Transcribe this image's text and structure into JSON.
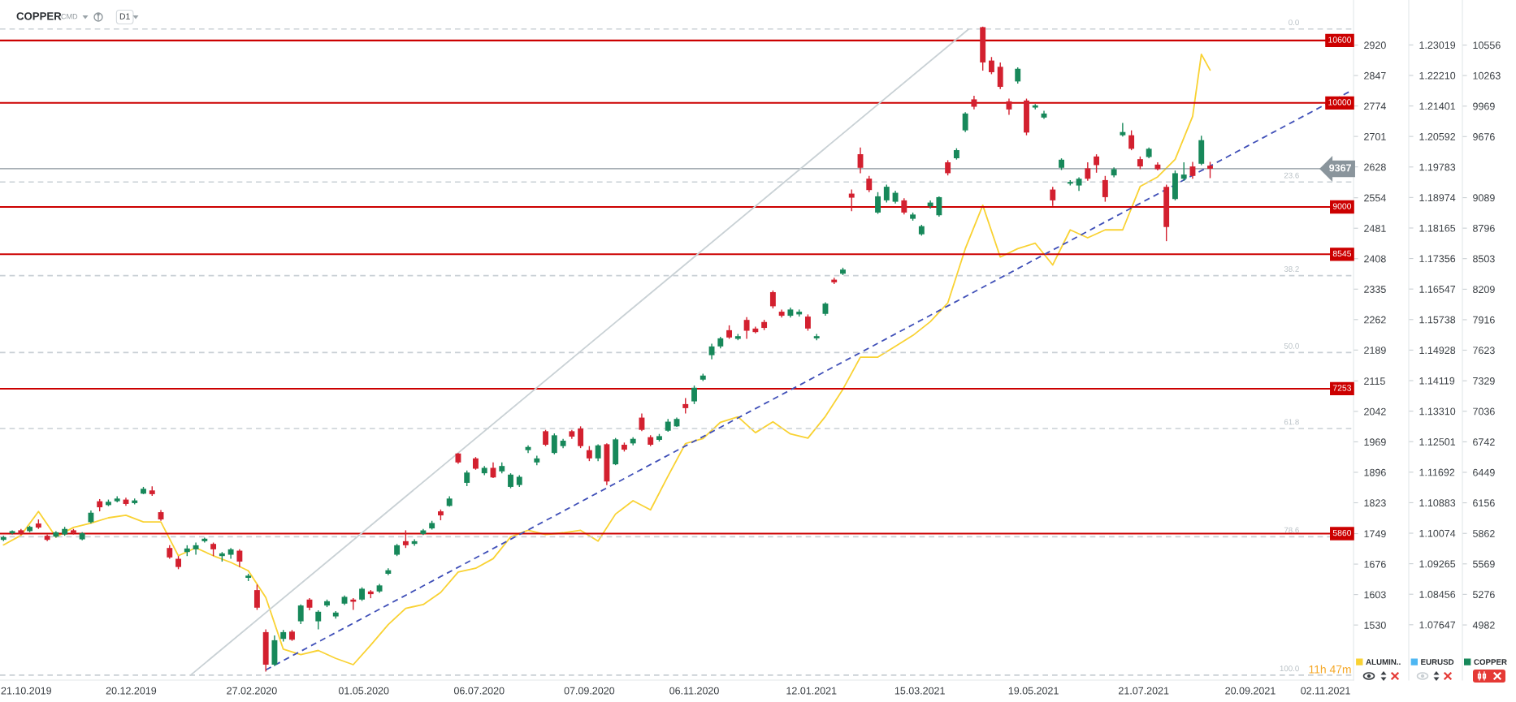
{
  "chart_data": {
    "type": "candlestick",
    "title": "COPPER",
    "annotations": [
      "CMD",
      "D1",
      "11h 47m",
      {
        "text": "0.0",
        "x": "2021-10-18",
        "y": 10710
      },
      {
        "text": "23.6",
        "x": "2021-10-18",
        "y": 9240
      },
      {
        "text": "38.2",
        "x": "2021-10-18",
        "y": 8340
      },
      {
        "text": "50.0",
        "x": "2021-10-18",
        "y": 7600
      },
      {
        "text": "61.8",
        "x": "2021-10-18",
        "y": 6870
      },
      {
        "text": "78.6",
        "x": "2021-10-18",
        "y": 5830
      },
      {
        "text": "100.0",
        "x": "2021-10-18",
        "y": 4500
      }
    ],
    "xlim": [
      "2019-10-06",
      "2021-11-18"
    ],
    "xticks": [
      {
        "value": "2019-10-21",
        "label": "21.10.2019"
      },
      {
        "value": "2019-12-20",
        "label": "20.12.2019"
      },
      {
        "value": "2020-02-27",
        "label": "27.02.2020"
      },
      {
        "value": "2020-05-01",
        "label": "01.05.2020"
      },
      {
        "value": "2020-07-06",
        "label": "06.07.2020"
      },
      {
        "value": "2020-09-07",
        "label": "07.09.2020"
      },
      {
        "value": "2020-11-06",
        "label": "06.11.2020"
      },
      {
        "value": "2021-01-12",
        "label": "12.01.2021"
      },
      {
        "value": "2021-03-15",
        "label": "15.03.2021"
      },
      {
        "value": "2021-05-19",
        "label": "19.05.2021"
      },
      {
        "value": "2021-07-21",
        "label": "21.07.2021"
      },
      {
        "value": "2021-09-20",
        "label": "20.09.2021"
      },
      {
        "value": "2021-11-02",
        "label": "02.11.2021"
      }
    ],
    "ylim": [
      4452,
      10989
    ],
    "yticks": [
      10556,
      10263,
      9969,
      9676,
      9089,
      8796,
      8503,
      8209,
      7916,
      7623,
      7329,
      7036,
      6742,
      6449,
      6156,
      5862,
      5569,
      5276,
      4982
    ],
    "y2lim": [
      1398,
      3028
    ],
    "y2ticks": [
      2920,
      2847,
      2774,
      2701,
      2628,
      2554,
      2481,
      2408,
      2335,
      2262,
      2189,
      2115,
      2042,
      1969,
      1896,
      1823,
      1749,
      1676,
      1603,
      1530
    ],
    "y3lim": [
      1.0618,
      1.2421
    ],
    "y3ticks": [
      1.23019,
      {
        "value": 1.2221,
        "label": "1.22210"
      },
      1.21401,
      1.20592,
      1.19783,
      1.18974,
      1.18165,
      1.17356,
      1.16547,
      1.15738,
      1.14928,
      1.14119,
      {
        "value": 1.1331,
        "label": "1.13310"
      },
      1.12501,
      1.11692,
      1.10883,
      1.10074,
      1.09265,
      1.08456,
      1.07647
    ],
    "legend": "bottom right",
    "series": [
      {
        "name": "ALUMIN..",
        "type": "line",
        "axis": "y2",
        "color": "#f9d233",
        "x": [
          "2019-10-08",
          "2019-10-18",
          "2019-10-28",
          "2019-11-07",
          "2019-11-17",
          "2019-11-27",
          "2019-12-07",
          "2019-12-17",
          "2019-12-27",
          "2020-01-06",
          "2020-01-16",
          "2020-01-26",
          "2020-02-05",
          "2020-02-15",
          "2020-02-25",
          "2020-03-06",
          "2020-03-16",
          "2020-03-26",
          "2020-04-05",
          "2020-04-15",
          "2020-04-25",
          "2020-05-05",
          "2020-05-15",
          "2020-05-25",
          "2020-06-04",
          "2020-06-14",
          "2020-06-24",
          "2020-07-04",
          "2020-07-14",
          "2020-07-24",
          "2020-08-03",
          "2020-08-13",
          "2020-08-23",
          "2020-09-02",
          "2020-09-12",
          "2020-09-22",
          "2020-10-02",
          "2020-10-12",
          "2020-10-22",
          "2020-11-01",
          "2020-11-11",
          "2020-11-21",
          "2020-12-01",
          "2020-12-11",
          "2020-12-21",
          "2020-12-31",
          "2021-01-10",
          "2021-01-20",
          "2021-01-30",
          "2021-02-09",
          "2021-02-19",
          "2021-03-01",
          "2021-03-11",
          "2021-03-21",
          "2021-03-31",
          "2021-04-10",
          "2021-04-20",
          "2021-04-30",
          "2021-05-10",
          "2021-05-20",
          "2021-05-30",
          "2021-06-09",
          "2021-06-19",
          "2021-06-29",
          "2021-07-09",
          "2021-07-19",
          "2021-07-29",
          "2021-08-08",
          "2021-08-18",
          "2021-08-23",
          "2021-08-28"
        ],
        "values": [
          1722,
          1745,
          1802,
          1741,
          1764,
          1774,
          1787,
          1793,
          1777,
          1777,
          1696,
          1715,
          1696,
          1680,
          1660,
          1596,
          1472,
          1459,
          1469,
          1450,
          1435,
          1482,
          1531,
          1570,
          1579,
          1608,
          1657,
          1666,
          1689,
          1741,
          1757,
          1747,
          1751,
          1757,
          1731,
          1796,
          1828,
          1806,
          1887,
          1965,
          1977,
          2016,
          2029,
          1991,
          2017,
          1988,
          1978,
          2030,
          2095,
          2172,
          2172,
          2198,
          2224,
          2257,
          2302,
          2432,
          2536,
          2412,
          2432,
          2445,
          2393,
          2477,
          2458,
          2477,
          2477,
          2581,
          2604,
          2646,
          2749,
          2898,
          2860
        ]
      },
      {
        "name": "EURUSD",
        "type": "line",
        "axis": "y3",
        "color": "#4db6f2"
      },
      {
        "name": "COPPER",
        "axis": "y",
        "color": "#17885a",
        "x": [
          "2019-10-08",
          "2019-10-13",
          "2019-10-18",
          "2019-10-23",
          "2019-10-28",
          "2019-11-02",
          "2019-11-07",
          "2019-11-12",
          "2019-11-17",
          "2019-11-22",
          "2019-11-27",
          "2019-12-02",
          "2019-12-07",
          "2019-12-12",
          "2019-12-17",
          "2019-12-22",
          "2019-12-27",
          "2020-01-01",
          "2020-01-06",
          "2020-01-11",
          "2020-01-16",
          "2020-01-21",
          "2020-01-26",
          "2020-01-31",
          "2020-02-05",
          "2020-02-10",
          "2020-02-15",
          "2020-02-20",
          "2020-02-25",
          "2020-03-01",
          "2020-03-06",
          "2020-03-11",
          "2020-03-16",
          "2020-03-21",
          "2020-03-26",
          "2020-03-31",
          "2020-04-05",
          "2020-04-10",
          "2020-04-15",
          "2020-04-20",
          "2020-04-25",
          "2020-04-30",
          "2020-05-05",
          "2020-05-10",
          "2020-05-15",
          "2020-05-20",
          "2020-05-25",
          "2020-05-30",
          "2020-06-04",
          "2020-06-09",
          "2020-06-14",
          "2020-06-19",
          "2020-06-24",
          "2020-06-29",
          "2020-07-04",
          "2020-07-09",
          "2020-07-14",
          "2020-07-19",
          "2020-07-24",
          "2020-07-29",
          "2020-08-03",
          "2020-08-08",
          "2020-08-13",
          "2020-08-18",
          "2020-08-23",
          "2020-08-28",
          "2020-09-02",
          "2020-09-07",
          "2020-09-12",
          "2020-09-17",
          "2020-09-22",
          "2020-09-27",
          "2020-10-02",
          "2020-10-07",
          "2020-10-12",
          "2020-10-17",
          "2020-10-22",
          "2020-10-27",
          "2020-11-01",
          "2020-11-06",
          "2020-11-11",
          "2020-11-16",
          "2020-11-21",
          "2020-11-26",
          "2020-12-01",
          "2020-12-06",
          "2020-12-11",
          "2020-12-16",
          "2020-12-21",
          "2020-12-26",
          "2020-12-31",
          "2021-01-05",
          "2021-01-10",
          "2021-01-15",
          "2021-01-20",
          "2021-01-25",
          "2021-01-30",
          "2021-02-04",
          "2021-02-09",
          "2021-02-14",
          "2021-02-19",
          "2021-02-24",
          "2021-03-01",
          "2021-03-06",
          "2021-03-11",
          "2021-03-16",
          "2021-03-21",
          "2021-03-26",
          "2021-03-31",
          "2021-04-05",
          "2021-04-10",
          "2021-04-15",
          "2021-04-20",
          "2021-04-25",
          "2021-04-30",
          "2021-05-05",
          "2021-05-10",
          "2021-05-15",
          "2021-05-20",
          "2021-05-25",
          "2021-05-30",
          "2021-06-04",
          "2021-06-09",
          "2021-06-14",
          "2021-06-19",
          "2021-06-24",
          "2021-06-29",
          "2021-07-04",
          "2021-07-09",
          "2021-07-14",
          "2021-07-19",
          "2021-07-24",
          "2021-07-29",
          "2021-08-03",
          "2021-08-08",
          "2021-08-13",
          "2021-08-18",
          "2021-08-23",
          "2021-08-28"
        ],
        "ohlc": [
          [
            5800,
            5839,
            5787,
            5826
          ],
          [
            5863,
            5892,
            5852,
            5884
          ],
          [
            5892,
            5905,
            5847,
            5858
          ],
          [
            5884,
            5936,
            5873,
            5925
          ],
          [
            5957,
            5996,
            5905,
            5918
          ],
          [
            5839,
            5852,
            5787,
            5800
          ],
          [
            5831,
            5884,
            5821,
            5873
          ],
          [
            5852,
            5925,
            5839,
            5905
          ],
          [
            5892,
            5905,
            5852,
            5865
          ],
          [
            5805,
            5873,
            5795,
            5863
          ],
          [
            5970,
            6082,
            5957,
            6061
          ],
          [
            6171,
            6192,
            6074,
            6113
          ],
          [
            6134,
            6187,
            6124,
            6166
          ],
          [
            6171,
            6218,
            6160,
            6197
          ],
          [
            6187,
            6205,
            6127,
            6145
          ],
          [
            6153,
            6197,
            6140,
            6179
          ],
          [
            6244,
            6309,
            6239,
            6291
          ],
          [
            6275,
            6314,
            6223,
            6239
          ],
          [
            6066,
            6087,
            5983,
            5996
          ],
          [
            5722,
            5748,
            5618,
            5631
          ],
          [
            5618,
            5644,
            5518,
            5539
          ],
          [
            5683,
            5748,
            5644,
            5717
          ],
          [
            5709,
            5774,
            5657,
            5748
          ],
          [
            5787,
            5821,
            5774,
            5811
          ],
          [
            5761,
            5774,
            5644,
            5709
          ],
          [
            5644,
            5683,
            5591,
            5670
          ],
          [
            5657,
            5722,
            5618,
            5709
          ],
          [
            5696,
            5709,
            5539,
            5591
          ],
          [
            5435,
            5474,
            5404,
            5456
          ],
          [
            5317,
            5370,
            5127,
            5148
          ],
          [
            4913,
            4939,
            4534,
            4600
          ],
          [
            4600,
            4882,
            4587,
            4835
          ],
          [
            4848,
            4934,
            4822,
            4913
          ],
          [
            4918,
            4934,
            4829,
            4840
          ],
          [
            5017,
            5179,
            4991,
            5169
          ],
          [
            5226,
            5239,
            5122,
            5148
          ],
          [
            5017,
            5122,
            4939,
            5109
          ],
          [
            5169,
            5226,
            5153,
            5210
          ],
          [
            5064,
            5116,
            5043,
            5101
          ],
          [
            5187,
            5265,
            5174,
            5252
          ],
          [
            5226,
            5239,
            5127,
            5205
          ],
          [
            5226,
            5344,
            5213,
            5330
          ],
          [
            5304,
            5317,
            5239,
            5278
          ],
          [
            5304,
            5377,
            5291,
            5362
          ],
          [
            5474,
            5526,
            5461,
            5508
          ],
          [
            5657,
            5761,
            5644,
            5748
          ],
          [
            5787,
            5892,
            5722,
            5748
          ],
          [
            5761,
            5805,
            5743,
            5787
          ],
          [
            5857,
            5905,
            5847,
            5891
          ],
          [
            5910,
            5983,
            5899,
            5962
          ],
          [
            6074,
            6092,
            5988,
            6035
          ],
          [
            6126,
            6218,
            6119,
            6197
          ],
          [
            6630,
            6635,
            6531,
            6544
          ],
          [
            6348,
            6466,
            6317,
            6447
          ],
          [
            6583,
            6596,
            6474,
            6484
          ],
          [
            6440,
            6510,
            6421,
            6492
          ],
          [
            6492,
            6544,
            6395,
            6400
          ],
          [
            6458,
            6544,
            6440,
            6510
          ],
          [
            6309,
            6440,
            6296,
            6427
          ],
          [
            6327,
            6421,
            6309,
            6406
          ],
          [
            6662,
            6708,
            6635,
            6693
          ],
          [
            6544,
            6609,
            6518,
            6583
          ],
          [
            6844,
            6857,
            6701,
            6714
          ],
          [
            6635,
            6823,
            6622,
            6805
          ],
          [
            6701,
            6771,
            6682,
            6753
          ],
          [
            6844,
            6857,
            6771,
            6792
          ],
          [
            6870,
            6891,
            6682,
            6701
          ],
          [
            6662,
            6701,
            6557,
            6583
          ],
          [
            6583,
            6719,
            6557,
            6708
          ],
          [
            6719,
            6727,
            6327,
            6361
          ],
          [
            6526,
            6779,
            6518,
            6766
          ],
          [
            6714,
            6735,
            6649,
            6667
          ],
          [
            6727,
            6787,
            6708,
            6771
          ],
          [
            6975,
            7014,
            6844,
            6857
          ],
          [
            6787,
            6805,
            6701,
            6714
          ],
          [
            6761,
            6818,
            6745,
            6797
          ],
          [
            6849,
            6962,
            6839,
            6936
          ],
          [
            6891,
            6975,
            6885,
            6962
          ],
          [
            7105,
            7163,
            7014,
            7066
          ],
          [
            7131,
            7283,
            7105,
            7262
          ],
          [
            7340,
            7397,
            7327,
            7379
          ],
          [
            7575,
            7685,
            7536,
            7659
          ],
          [
            7659,
            7752,
            7640,
            7737
          ],
          [
            7815,
            7862,
            7732,
            7745
          ],
          [
            7732,
            7779,
            7719,
            7758
          ],
          [
            7914,
            7940,
            7732,
            7810
          ],
          [
            7831,
            7850,
            7784,
            7797
          ],
          [
            7894,
            7915,
            7816,
            7837
          ],
          [
            8181,
            8197,
            8024,
            8045
          ],
          [
            7993,
            8014,
            7936,
            7954
          ],
          [
            7954,
            8032,
            7936,
            8014
          ],
          [
            7967,
            8014,
            7946,
            7993
          ],
          [
            7946,
            7967,
            7810,
            7831
          ],
          [
            7737,
            7779,
            7719,
            7758
          ],
          [
            7972,
            8084,
            7954,
            8071
          ],
          [
            8301,
            8319,
            8259,
            8275
          ],
          [
            8358,
            8416,
            8345,
            8398
          ],
          [
            9128,
            9167,
            8959,
            9089
          ],
          [
            9507,
            9572,
            9324,
            9376
          ],
          [
            9272,
            9298,
            9142,
            9162
          ],
          [
            8946,
            9142,
            8933,
            9102
          ],
          [
            9063,
            9215,
            9042,
            9194
          ],
          [
            9050,
            9155,
            9032,
            9136
          ],
          [
            9063,
            9084,
            8927,
            8946
          ],
          [
            8886,
            8946,
            8868,
            8927
          ],
          [
            8737,
            8828,
            8724,
            8815
          ],
          [
            9006,
            9063,
            8985,
            9042
          ],
          [
            8920,
            9102,
            8907,
            9094
          ],
          [
            9429,
            9449,
            9303,
            9324
          ],
          [
            9468,
            9564,
            9455,
            9546
          ],
          [
            9736,
            9910,
            9720,
            9898
          ],
          [
            10034,
            10068,
            9937,
            9963
          ],
          [
            10728,
            10733,
            10310,
            10389
          ],
          [
            10407,
            10441,
            10276,
            10295
          ],
          [
            10347,
            10389,
            10133,
            10154
          ],
          [
            10015,
            10041,
            9885,
            9937
          ],
          [
            10206,
            10342,
            10185,
            10328
          ],
          [
            10023,
            10041,
            9689,
            9715
          ],
          [
            9955,
            9989,
            9937,
            9976
          ],
          [
            9859,
            9924,
            9846,
            9898
          ],
          [
            9167,
            9193,
            9010,
            9063
          ],
          [
            9376,
            9467,
            9355,
            9454
          ],
          [
            9224,
            9258,
            9206,
            9240
          ],
          [
            9206,
            9284,
            9154,
            9271
          ],
          [
            9371,
            9428,
            9251,
            9271
          ],
          [
            9485,
            9506,
            9329,
            9402
          ],
          [
            9258,
            9298,
            9050,
            9094
          ],
          [
            9303,
            9381,
            9284,
            9363
          ],
          [
            9689,
            9807,
            9676,
            9720
          ],
          [
            9689,
            9736,
            9545,
            9559
          ],
          [
            9459,
            9485,
            9363,
            9389
          ],
          [
            9480,
            9572,
            9467,
            9559
          ],
          [
            9407,
            9428,
            9350,
            9363
          ],
          [
            9193,
            9214,
            8671,
            8807
          ],
          [
            9076,
            9350,
            9063,
            9324
          ],
          [
            9271,
            9428,
            9251,
            9311
          ],
          [
            9389,
            9433,
            9271,
            9298
          ],
          [
            9415,
            9684,
            9402,
            9642
          ],
          [
            9397,
            9433,
            9277,
            9367
          ]
        ],
        "colors": [
          "#17885a",
          "#17885a",
          "#d3202f",
          "#17885a",
          "#d3202f",
          "#d3202f",
          "#17885a",
          "#17885a",
          "#d3202f",
          "#17885a",
          "#17885a",
          "#d3202f",
          "#17885a",
          "#17885a",
          "#d3202f",
          "#17885a",
          "#17885a",
          "#d3202f",
          "#d3202f",
          "#d3202f",
          "#d3202f",
          "#17885a",
          "#17885a",
          "#17885a",
          "#d3202f",
          "#17885a",
          "#17885a",
          "#d3202f",
          "#17885a",
          "#d3202f",
          "#d3202f",
          "#17885a",
          "#17885a",
          "#d3202f",
          "#17885a",
          "#d3202f",
          "#17885a",
          "#17885a",
          "#17885a",
          "#17885a",
          "#d3202f",
          "#17885a",
          "#d3202f",
          "#17885a",
          "#17885a",
          "#17885a",
          "#d3202f",
          "#17885a",
          "#17885a",
          "#17885a",
          "#d3202f",
          "#17885a",
          "#d3202f",
          "#17885a",
          "#d3202f",
          "#17885a",
          "#d3202f",
          "#17885a",
          "#17885a",
          "#17885a",
          "#17885a",
          "#17885a",
          "#d3202f",
          "#17885a",
          "#17885a",
          "#d3202f",
          "#d3202f",
          "#d3202f",
          "#17885a",
          "#d3202f",
          "#17885a",
          "#d3202f",
          "#17885a",
          "#d3202f",
          "#d3202f",
          "#17885a",
          "#17885a",
          "#17885a",
          "#d3202f",
          "#17885a",
          "#17885a",
          "#17885a",
          "#17885a",
          "#d3202f",
          "#17885a",
          "#d3202f",
          "#d3202f",
          "#d3202f",
          "#d3202f",
          "#d3202f",
          "#17885a",
          "#17885a",
          "#d3202f",
          "#17885a",
          "#17885a",
          "#d3202f",
          "#17885a",
          "#d3202f",
          "#d3202f",
          "#d3202f",
          "#17885a",
          "#17885a",
          "#17885a",
          "#d3202f",
          "#17885a",
          "#17885a",
          "#17885a",
          "#17885a",
          "#d3202f",
          "#17885a",
          "#17885a",
          "#d3202f",
          "#d3202f",
          "#d3202f",
          "#d3202f",
          "#d3202f",
          "#17885a",
          "#d3202f",
          "#17885a",
          "#17885a",
          "#d3202f",
          "#17885a",
          "#17885a",
          "#17885a",
          "#d3202f",
          "#d3202f",
          "#d3202f",
          "#17885a",
          "#17885a",
          "#d3202f",
          "#d3202f",
          "#17885a",
          "#d3202f",
          "#d3202f",
          "#17885a",
          "#17885a",
          "#d3202f",
          "#17885a",
          "#d3202f"
        ]
      },
      {
        "type": "line",
        "axis": "y",
        "color": "#c9d1d5",
        "x": [
          "2020-01-23",
          "2021-04-12"
        ],
        "values": [
          4500,
          10710
        ]
      },
      {
        "type": "line",
        "axis": "y",
        "color": "#4050b8",
        "line_style": "dashed",
        "x": [
          "2020-03-06",
          "2021-11-17"
        ],
        "values": [
          4550,
          10120
        ]
      }
    ],
    "ref_lines": [
      {
        "axis": "y",
        "value": 10600,
        "label": "10600",
        "color": "#cc0000"
      },
      {
        "axis": "y",
        "value": 10000,
        "label": "10000",
        "color": "#cc0000"
      },
      {
        "axis": "y",
        "value": 9000,
        "label": "9000",
        "color": "#cc0000"
      },
      {
        "axis": "y",
        "value": 8545,
        "label": "8545",
        "color": "#cc0000"
      },
      {
        "axis": "y",
        "value": 7253,
        "label": "7253",
        "color": "#cc0000"
      },
      {
        "axis": "y",
        "value": 5860,
        "label": "5860",
        "color": "#cc0000"
      },
      {
        "axis": "y",
        "value": 9367,
        "label": "9367",
        "color": "#8a959c"
      },
      {
        "axis": "y",
        "value": 10710,
        "color": "#c9d0d5",
        "line_style": "dashed"
      },
      {
        "axis": "y",
        "value": 9240,
        "color": "#c9d0d5",
        "line_style": "dashed"
      },
      {
        "axis": "y",
        "value": 8340,
        "color": "#c9d0d5",
        "line_style": "dashed"
      },
      {
        "axis": "y",
        "value": 7600,
        "color": "#c9d0d5",
        "line_style": "dashed"
      },
      {
        "axis": "y",
        "value": 6870,
        "color": "#c9d0d5",
        "line_style": "dashed"
      },
      {
        "axis": "y",
        "value": 5830,
        "color": "#c9d0d5",
        "line_style": "dashed"
      },
      {
        "axis": "y",
        "value": 4500,
        "color": "#c9d0d5",
        "line_style": "dashed"
      }
    ]
  }
}
